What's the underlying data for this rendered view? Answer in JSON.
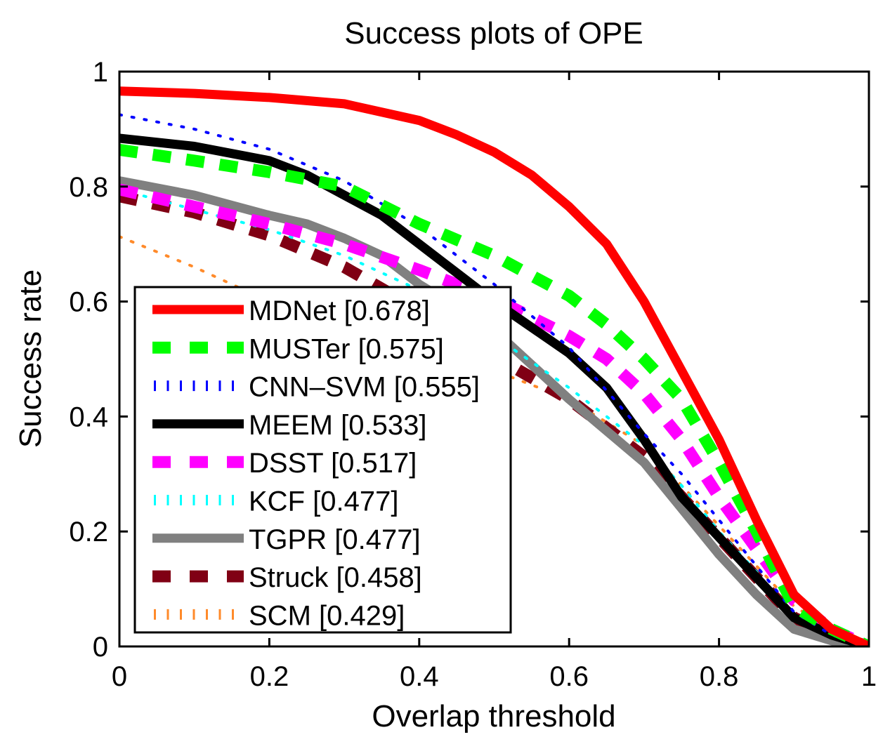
{
  "chart_data": {
    "type": "line",
    "title": "Success plots of OPE",
    "xlabel": "Overlap threshold",
    "ylabel": "Success rate",
    "xlim": [
      0,
      1
    ],
    "ylim": [
      0,
      1
    ],
    "xticks": [
      0,
      0.2,
      0.4,
      0.6,
      0.8,
      1
    ],
    "xtick_labels": [
      "0",
      "0.2",
      "0.4",
      "0.6",
      "0.8",
      "1"
    ],
    "yticks": [
      0,
      0.2,
      0.4,
      0.6,
      0.8,
      1
    ],
    "ytick_labels": [
      "0",
      "0.2",
      "0.4",
      "0.6",
      "0.8",
      "1"
    ],
    "grid": false,
    "legend_position": "lower-left",
    "series": [
      {
        "name": "MDNet",
        "label": "MDNet [0.678]",
        "auc": 0.678,
        "color": "#ff0000",
        "style": "solid",
        "x": [
          0,
          0.1,
          0.2,
          0.3,
          0.4,
          0.45,
          0.5,
          0.55,
          0.6,
          0.65,
          0.7,
          0.75,
          0.8,
          0.85,
          0.9,
          0.95,
          1
        ],
        "y": [
          0.966,
          0.962,
          0.955,
          0.944,
          0.915,
          0.89,
          0.86,
          0.82,
          0.765,
          0.7,
          0.6,
          0.48,
          0.36,
          0.22,
          0.09,
          0.03,
          0
        ]
      },
      {
        "name": "MUSTer",
        "label": "MUSTer [0.575]",
        "auc": 0.575,
        "color": "#00ff00",
        "style": "dashed",
        "x": [
          0,
          0.1,
          0.2,
          0.3,
          0.4,
          0.5,
          0.6,
          0.65,
          0.7,
          0.75,
          0.8,
          0.85,
          0.9,
          0.95,
          1
        ],
        "y": [
          0.864,
          0.845,
          0.825,
          0.8,
          0.735,
          0.68,
          0.61,
          0.56,
          0.5,
          0.43,
          0.32,
          0.2,
          0.07,
          0.03,
          0
        ]
      },
      {
        "name": "CNN-SVM",
        "label": "CNN–SVM [0.555]",
        "auc": 0.555,
        "color": "#0000ff",
        "style": "dotted",
        "x": [
          0,
          0.1,
          0.2,
          0.3,
          0.4,
          0.5,
          0.6,
          0.7,
          0.75,
          0.8,
          0.85,
          0.9,
          0.95,
          1
        ],
        "y": [
          0.925,
          0.9,
          0.865,
          0.81,
          0.73,
          0.63,
          0.52,
          0.37,
          0.3,
          0.22,
          0.14,
          0.06,
          0.02,
          0
        ]
      },
      {
        "name": "MEEM",
        "label": "MEEM [0.533]",
        "auc": 0.533,
        "color": "#000000",
        "style": "solid",
        "x": [
          0,
          0.1,
          0.2,
          0.25,
          0.3,
          0.35,
          0.4,
          0.5,
          0.6,
          0.65,
          0.7,
          0.75,
          0.8,
          0.85,
          0.9,
          0.95,
          1
        ],
        "y": [
          0.884,
          0.87,
          0.845,
          0.82,
          0.785,
          0.75,
          0.7,
          0.6,
          0.51,
          0.45,
          0.36,
          0.26,
          0.19,
          0.12,
          0.05,
          0.02,
          0
        ]
      },
      {
        "name": "DSST",
        "label": "DSST [0.517]",
        "auc": 0.517,
        "color": "#ff00ff",
        "style": "dashed",
        "x": [
          0,
          0.1,
          0.2,
          0.3,
          0.4,
          0.5,
          0.6,
          0.65,
          0.7,
          0.75,
          0.8,
          0.85,
          0.9,
          0.95,
          1
        ],
        "y": [
          0.795,
          0.765,
          0.735,
          0.7,
          0.655,
          0.605,
          0.54,
          0.5,
          0.44,
          0.36,
          0.26,
          0.17,
          0.08,
          0.03,
          0
        ]
      },
      {
        "name": "KCF",
        "label": "KCF [0.477]",
        "auc": 0.477,
        "color": "#00ffff",
        "style": "dotted",
        "x": [
          0,
          0.1,
          0.2,
          0.3,
          0.4,
          0.5,
          0.6,
          0.7,
          0.75,
          0.8,
          0.85,
          0.9,
          0.95,
          1
        ],
        "y": [
          0.795,
          0.76,
          0.725,
          0.68,
          0.62,
          0.54,
          0.45,
          0.35,
          0.28,
          0.2,
          0.13,
          0.05,
          0.02,
          0
        ]
      },
      {
        "name": "TGPR",
        "label": "TGPR [0.477]",
        "auc": 0.477,
        "color": "#808080",
        "style": "solid",
        "x": [
          0,
          0.1,
          0.2,
          0.25,
          0.3,
          0.35,
          0.4,
          0.5,
          0.6,
          0.7,
          0.75,
          0.8,
          0.85,
          0.9,
          0.95,
          1
        ],
        "y": [
          0.81,
          0.785,
          0.75,
          0.735,
          0.71,
          0.68,
          0.63,
          0.55,
          0.43,
          0.32,
          0.24,
          0.16,
          0.09,
          0.03,
          0.01,
          0
        ]
      },
      {
        "name": "Struck",
        "label": "Struck [0.458]",
        "auc": 0.458,
        "color": "#800014",
        "style": "dashed",
        "x": [
          0,
          0.1,
          0.2,
          0.3,
          0.4,
          0.5,
          0.6,
          0.7,
          0.75,
          0.8,
          0.85,
          0.9,
          0.95,
          1
        ],
        "y": [
          0.783,
          0.755,
          0.715,
          0.66,
          0.585,
          0.505,
          0.43,
          0.33,
          0.26,
          0.19,
          0.12,
          0.05,
          0.02,
          0
        ]
      },
      {
        "name": "SCM",
        "label": "SCM [0.429]",
        "auc": 0.429,
        "color": "#ff8a2a",
        "style": "dotted",
        "x": [
          0,
          0.1,
          0.2,
          0.3,
          0.4,
          0.5,
          0.6,
          0.7,
          0.75,
          0.8,
          0.85,
          0.9,
          0.95,
          1
        ],
        "y": [
          0.713,
          0.66,
          0.6,
          0.55,
          0.51,
          0.48,
          0.43,
          0.35,
          0.28,
          0.21,
          0.14,
          0.07,
          0.03,
          0
        ]
      }
    ]
  }
}
